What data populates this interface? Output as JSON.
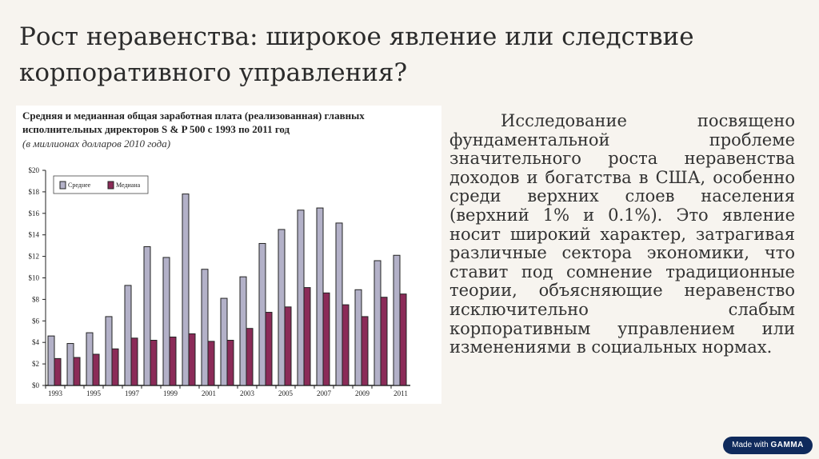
{
  "slide": {
    "title_line1": "Рост неравенства: широкое явление или следствие",
    "title_line2": "корпоративного управления?",
    "body": "Исследование посвящено фундаментальной проблеме значительного роста неравенства доходов и богатства в США, особенно среди верхних слоев населения (верхний 1% и 0.1%). Это явление носит широкий характер, затрагивая различные сектора экономики, что ставит под сомнение традиционные теории, объясняющие неравенство исключительно слабым корпоративным управлением или изменениями в социальных нормах.",
    "badge_prefix": "Made with",
    "badge_brand": "GAMMA"
  },
  "chart_data": {
    "type": "bar",
    "title": "Средняя и медианная общая заработная плата (реализованная) главных исполнительных директоров S & P 500 с 1993 по 2011 год",
    "title_line1": "Средняя и медианная общая заработная плата (реализованная) главных",
    "title_line2": "исполнительных директоров S & P 500 с 1993 по 2011 год",
    "subtitle": "(в миллионах долларов 2010 года)",
    "categories": [
      "1993",
      "1994",
      "1995",
      "1996",
      "1997",
      "1998",
      "1999",
      "2000",
      "2001",
      "2002",
      "2003",
      "2004",
      "2005",
      "2006",
      "2007",
      "2008",
      "2009",
      "2010",
      "2011"
    ],
    "x_tick_labels": [
      "1993",
      "1995",
      "1997",
      "1999",
      "2001",
      "2003",
      "2005",
      "2007",
      "2009",
      "2011"
    ],
    "y_tick_labels": [
      "$0",
      "$2",
      "$4",
      "$6",
      "$8",
      "$10",
      "$12",
      "$14",
      "$16",
      "$18",
      "$20"
    ],
    "ylim": [
      0,
      20
    ],
    "legend_placement": "top-left",
    "series": [
      {
        "name": "Среднее",
        "color": "#b3b1c8",
        "values": [
          4.6,
          3.9,
          4.9,
          6.4,
          9.3,
          12.9,
          11.9,
          17.8,
          10.8,
          8.1,
          10.1,
          13.2,
          14.5,
          16.3,
          16.5,
          15.1,
          8.9,
          11.6,
          12.1
        ]
      },
      {
        "name": "Медиана",
        "color": "#8b2b58",
        "values": [
          2.5,
          2.6,
          2.9,
          3.4,
          4.4,
          4.2,
          4.5,
          4.8,
          4.1,
          4.2,
          5.3,
          6.8,
          7.3,
          9.1,
          8.6,
          7.5,
          6.4,
          8.2,
          8.5
        ]
      }
    ]
  }
}
